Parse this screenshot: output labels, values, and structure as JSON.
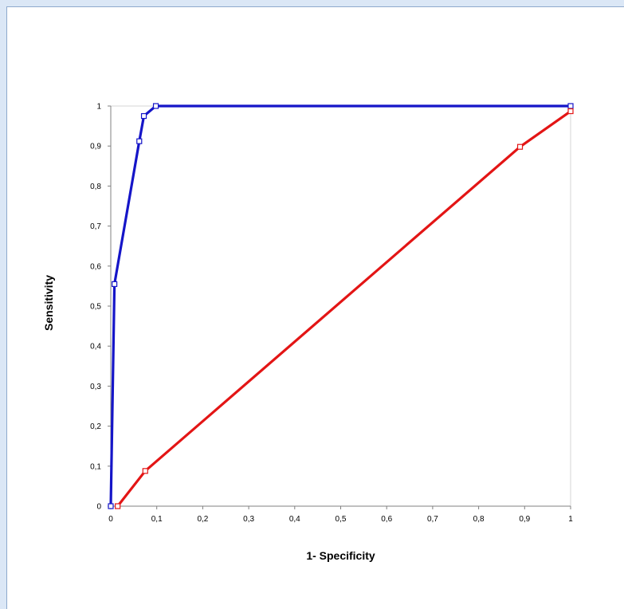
{
  "chart_data": {
    "type": "line",
    "xlabel": "1- Specificity",
    "ylabel": "Sensitivity",
    "xlim": [
      0,
      1
    ],
    "ylim": [
      0,
      1
    ],
    "x_ticks": [
      "0",
      "0,1",
      "0,2",
      "0,3",
      "0,4",
      "0,5",
      "0,6",
      "0,7",
      "0,8",
      "0,9",
      "1"
    ],
    "y_ticks": [
      "0",
      "0,1",
      "0,2",
      "0,3",
      "0,4",
      "0,5",
      "0,6",
      "0,7",
      "0,8",
      "0,9",
      "1"
    ],
    "grid": false,
    "legend": "none",
    "series": [
      {
        "color": "#1515c8",
        "points": [
          [
            0,
            0
          ],
          [
            0.008,
            0.555
          ],
          [
            0.062,
            0.912
          ],
          [
            0.072,
            0.975
          ],
          [
            0.098,
            1.0
          ],
          [
            1.0,
            1.0
          ]
        ]
      },
      {
        "color": "#e31515",
        "points": [
          [
            0.015,
            0.0
          ],
          [
            0.075,
            0.088
          ],
          [
            0.89,
            0.898
          ],
          [
            1.0,
            0.987
          ]
        ]
      }
    ]
  }
}
